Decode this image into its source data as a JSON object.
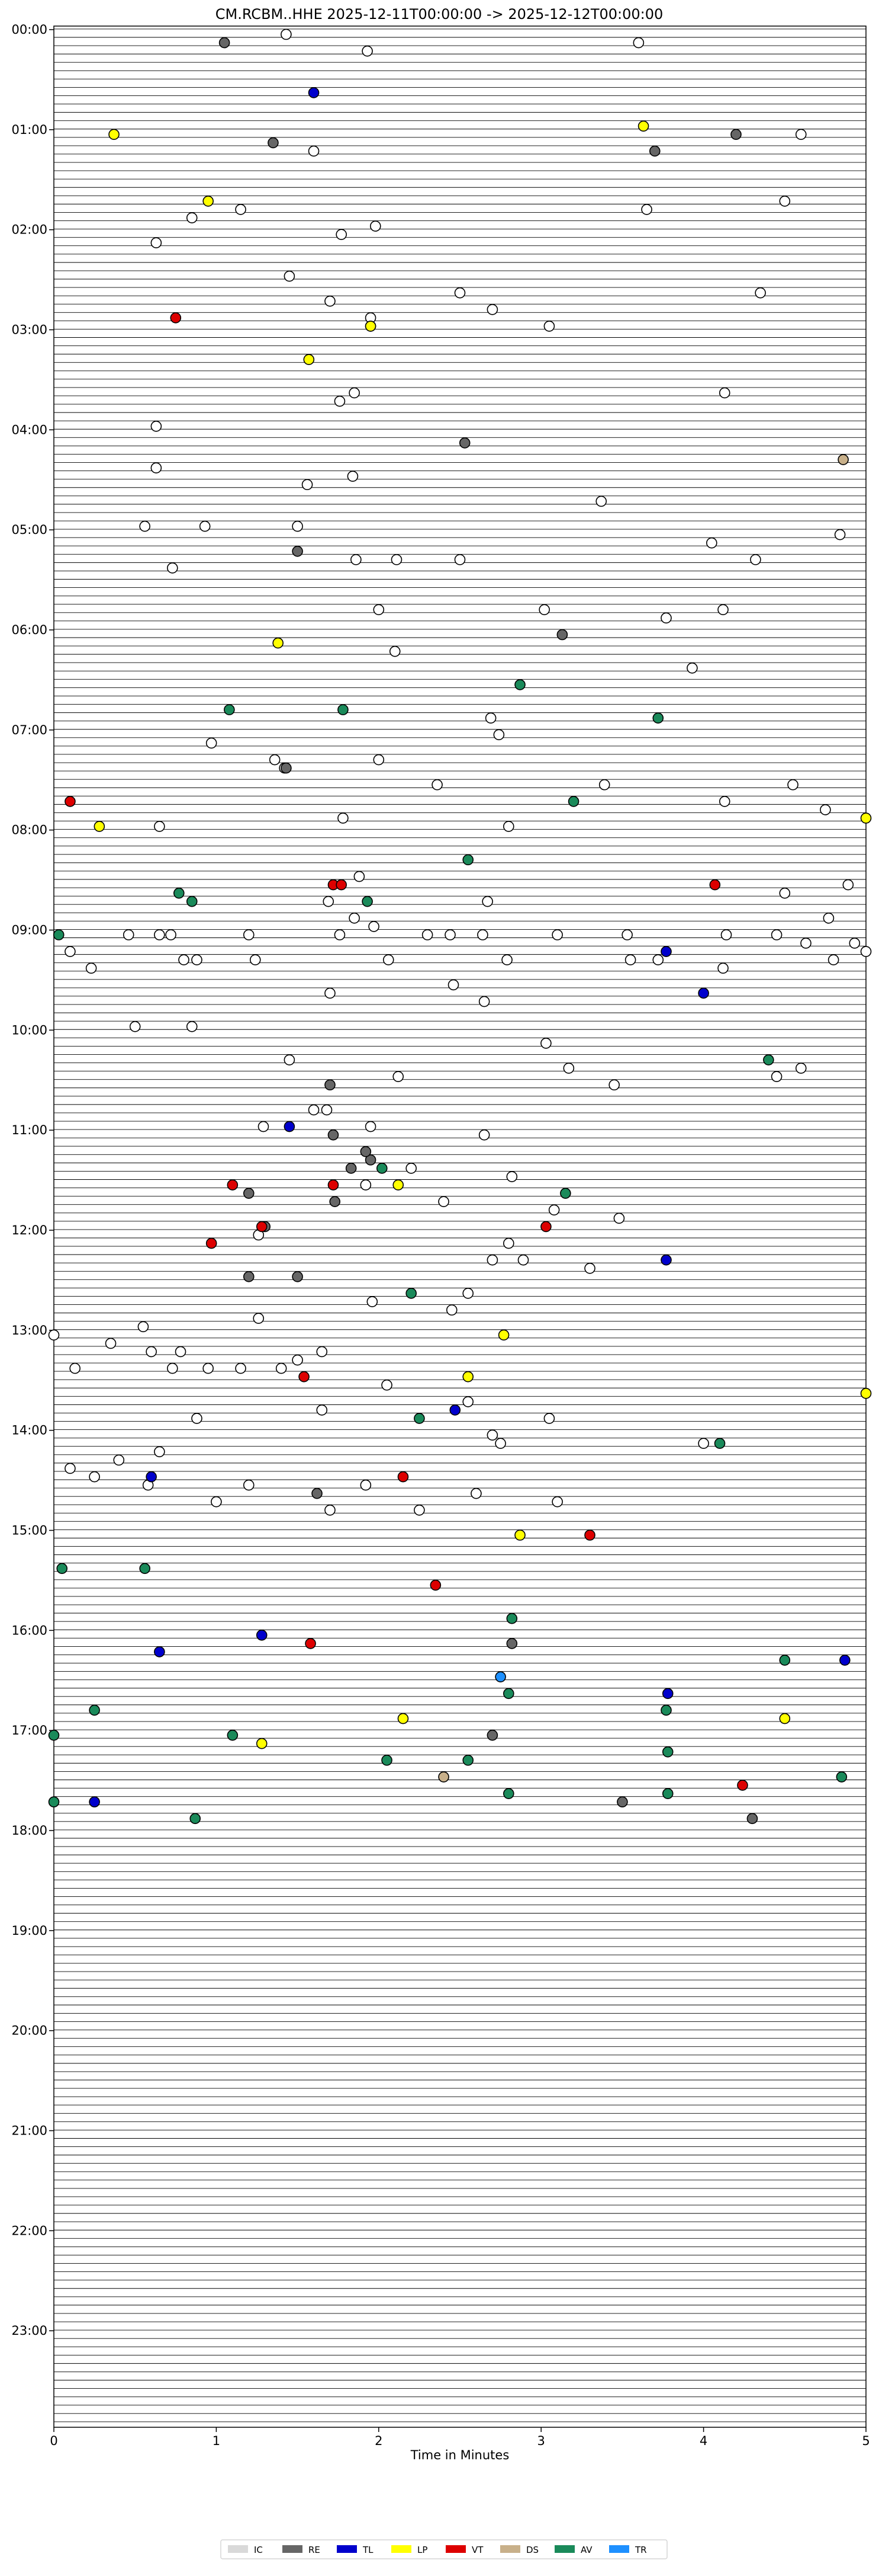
{
  "chart_data": {
    "type": "scatter",
    "title": "CM.RCBM..HHE  2025-12-11T00:00:00 -> 2025-12-12T00:00:00",
    "xlabel": "Time in Minutes",
    "ylabel": "",
    "xlim": [
      0,
      5
    ],
    "ylim": [
      "00:00",
      "24:00"
    ],
    "trace_interval_minutes": 5,
    "grid": false,
    "legend_position": "bottom-center",
    "x_ticks": [
      "0",
      "1",
      "2",
      "3",
      "4",
      "5"
    ],
    "y_ticks": [
      "00:00",
      "01:00",
      "02:00",
      "03:00",
      "04:00",
      "05:00",
      "06:00",
      "07:00",
      "08:00",
      "09:00",
      "10:00",
      "11:00",
      "12:00",
      "13:00",
      "14:00",
      "15:00",
      "16:00",
      "17:00",
      "18:00",
      "19:00",
      "20:00",
      "21:00",
      "22:00",
      "23:00"
    ],
    "legend": [
      {
        "code": "IC",
        "color": "#d9d9d9"
      },
      {
        "code": "RE",
        "color": "#666666"
      },
      {
        "code": "TL",
        "color": "#0000cc"
      },
      {
        "code": "LP",
        "color": "#ffff00"
      },
      {
        "code": "VT",
        "color": "#dd0000"
      },
      {
        "code": "DS",
        "color": "#c8b08a"
      },
      {
        "code": "AV",
        "color": "#1a8a5a"
      },
      {
        "code": "TR",
        "color": "#1e90ff"
      }
    ],
    "series": [
      {
        "class": "IC",
        "color": "#ffffff",
        "points": [
          [
            1.43,
            "00:00"
          ],
          [
            3.6,
            "00:05"
          ],
          [
            1.93,
            "00:10"
          ],
          [
            4.6,
            "01:00"
          ],
          [
            1.6,
            "01:10"
          ],
          [
            4.5,
            "01:40"
          ],
          [
            1.15,
            "01:45"
          ],
          [
            3.65,
            "01:45"
          ],
          [
            0.85,
            "01:50"
          ],
          [
            1.98,
            "01:55"
          ],
          [
            1.77,
            "02:00"
          ],
          [
            0.63,
            "02:05"
          ],
          [
            1.45,
            "02:25"
          ],
          [
            4.35,
            "02:35"
          ],
          [
            2.5,
            "02:35"
          ],
          [
            1.7,
            "02:40"
          ],
          [
            2.7,
            "02:45"
          ],
          [
            1.95,
            "02:50"
          ],
          [
            1.95,
            "02:55"
          ],
          [
            3.05,
            "02:55"
          ],
          [
            1.85,
            "03:35"
          ],
          [
            4.13,
            "03:35"
          ],
          [
            1.76,
            "03:40"
          ],
          [
            0.63,
            "03:55"
          ],
          [
            0.63,
            "04:20"
          ],
          [
            1.84,
            "04:25"
          ],
          [
            1.56,
            "04:30"
          ],
          [
            3.37,
            "04:40"
          ],
          [
            0.56,
            "04:55"
          ],
          [
            0.93,
            "04:55"
          ],
          [
            1.5,
            "04:55"
          ],
          [
            4.84,
            "05:00"
          ],
          [
            4.05,
            "05:05"
          ],
          [
            1.86,
            "05:15"
          ],
          [
            2.11,
            "05:15"
          ],
          [
            2.5,
            "05:15"
          ],
          [
            4.32,
            "05:15"
          ],
          [
            0.73,
            "05:20"
          ],
          [
            2.0,
            "05:45"
          ],
          [
            3.02,
            "05:45"
          ],
          [
            4.12,
            "05:45"
          ],
          [
            3.77,
            "05:50"
          ],
          [
            2.1,
            "06:10"
          ],
          [
            3.93,
            "06:20"
          ],
          [
            2.69,
            "06:50"
          ],
          [
            2.74,
            "07:00"
          ],
          [
            0.97,
            "07:05"
          ],
          [
            1.36,
            "07:15"
          ],
          [
            2.0,
            "07:15"
          ],
          [
            1.42,
            "07:20"
          ],
          [
            2.36,
            "07:30"
          ],
          [
            3.39,
            "07:30"
          ],
          [
            4.55,
            "07:30"
          ],
          [
            4.13,
            "07:40"
          ],
          [
            1.78,
            "07:50"
          ],
          [
            4.75,
            "07:45"
          ],
          [
            0.65,
            "07:55"
          ],
          [
            2.8,
            "07:55"
          ],
          [
            1.88,
            "08:25"
          ],
          [
            4.89,
            "08:30"
          ],
          [
            4.5,
            "08:35"
          ],
          [
            1.69,
            "08:40"
          ],
          [
            2.67,
            "08:40"
          ],
          [
            1.97,
            "08:55"
          ],
          [
            1.85,
            "08:50"
          ],
          [
            4.77,
            "08:50"
          ],
          [
            0.46,
            "09:00"
          ],
          [
            0.65,
            "09:00"
          ],
          [
            0.72,
            "09:00"
          ],
          [
            1.2,
            "09:00"
          ],
          [
            1.76,
            "09:00"
          ],
          [
            2.3,
            "09:00"
          ],
          [
            2.44,
            "09:00"
          ],
          [
            2.64,
            "09:00"
          ],
          [
            3.1,
            "09:00"
          ],
          [
            3.53,
            "09:00"
          ],
          [
            4.14,
            "09:00"
          ],
          [
            4.45,
            "09:00"
          ],
          [
            4.63,
            "09:05"
          ],
          [
            4.93,
            "09:05"
          ],
          [
            0.1,
            "09:10"
          ],
          [
            5.0,
            "09:10"
          ],
          [
            0.23,
            "09:20"
          ],
          [
            0.8,
            "09:15"
          ],
          [
            0.88,
            "09:15"
          ],
          [
            1.24,
            "09:15"
          ],
          [
            2.06,
            "09:15"
          ],
          [
            2.79,
            "09:15"
          ],
          [
            3.55,
            "09:15"
          ],
          [
            3.72,
            "09:15"
          ],
          [
            4.12,
            "09:20"
          ],
          [
            4.8,
            "09:15"
          ],
          [
            2.46,
            "09:30"
          ],
          [
            1.7,
            "09:35"
          ],
          [
            2.65,
            "09:40"
          ],
          [
            0.85,
            "09:55"
          ],
          [
            0.5,
            "09:55"
          ],
          [
            3.03,
            "10:05"
          ],
          [
            3.17,
            "10:20"
          ],
          [
            1.45,
            "10:15"
          ],
          [
            2.12,
            "10:25"
          ],
          [
            3.45,
            "10:30"
          ],
          [
            4.6,
            "10:20"
          ],
          [
            4.45,
            "10:25"
          ],
          [
            1.6,
            "10:45"
          ],
          [
            1.29,
            "10:55"
          ],
          [
            1.95,
            "10:55"
          ],
          [
            1.68,
            "10:45"
          ],
          [
            2.65,
            "11:00"
          ],
          [
            2.2,
            "11:20"
          ],
          [
            2.82,
            "11:25"
          ],
          [
            1.92,
            "11:30"
          ],
          [
            2.4,
            "11:40"
          ],
          [
            3.08,
            "11:45"
          ],
          [
            3.48,
            "11:50"
          ],
          [
            1.26,
            "12:00"
          ],
          [
            2.8,
            "12:05"
          ],
          [
            2.7,
            "12:15"
          ],
          [
            2.89,
            "12:15"
          ],
          [
            3.3,
            "12:20"
          ],
          [
            2.55,
            "12:35"
          ],
          [
            1.96,
            "12:40"
          ],
          [
            2.45,
            "12:45"
          ],
          [
            1.26,
            "12:50"
          ],
          [
            0.55,
            "12:55"
          ],
          [
            0.0,
            "13:00"
          ],
          [
            0.35,
            "13:05"
          ],
          [
            0.78,
            "13:10"
          ],
          [
            0.6,
            "13:10"
          ],
          [
            0.73,
            "13:20"
          ],
          [
            0.13,
            "13:20"
          ],
          [
            0.95,
            "13:20"
          ],
          [
            1.15,
            "13:20"
          ],
          [
            1.4,
            "13:20"
          ],
          [
            1.5,
            "13:15"
          ],
          [
            1.65,
            "13:10"
          ],
          [
            2.05,
            "13:30"
          ],
          [
            2.55,
            "13:40"
          ],
          [
            1.65,
            "13:45"
          ],
          [
            0.88,
            "13:50"
          ],
          [
            3.05,
            "13:50"
          ],
          [
            2.7,
            "14:00"
          ],
          [
            4.0,
            "14:05"
          ],
          [
            2.75,
            "14:05"
          ],
          [
            0.65,
            "14:10"
          ],
          [
            0.1,
            "14:20"
          ],
          [
            0.25,
            "14:25"
          ],
          [
            0.4,
            "14:15"
          ],
          [
            0.58,
            "14:30"
          ],
          [
            1.92,
            "14:30"
          ],
          [
            1.0,
            "14:40"
          ],
          [
            1.2,
            "14:30"
          ],
          [
            2.6,
            "14:35"
          ],
          [
            3.1,
            "14:40"
          ],
          [
            1.7,
            "14:45"
          ],
          [
            2.25,
            "14:45"
          ]
        ]
      },
      {
        "class": "RE",
        "color": "#666666",
        "points": [
          [
            1.05,
            "00:05"
          ],
          [
            4.2,
            "01:00"
          ],
          [
            1.35,
            "01:05"
          ],
          [
            3.7,
            "01:10"
          ],
          [
            2.53,
            "04:05"
          ],
          [
            1.5,
            "05:10"
          ],
          [
            3.13,
            "06:00"
          ],
          [
            1.43,
            "07:20"
          ],
          [
            1.7,
            "10:30"
          ],
          [
            1.72,
            "11:00"
          ],
          [
            1.83,
            "11:20"
          ],
          [
            1.95,
            "11:15"
          ],
          [
            1.92,
            "11:10"
          ],
          [
            1.2,
            "11:35"
          ],
          [
            1.73,
            "11:40"
          ],
          [
            1.3,
            "11:55"
          ],
          [
            1.5,
            "12:25"
          ],
          [
            1.2,
            "12:25"
          ],
          [
            1.62,
            "14:35"
          ],
          [
            2.82,
            "16:05"
          ],
          [
            2.7,
            "17:00"
          ],
          [
            3.5,
            "17:40"
          ],
          [
            4.3,
            "17:50"
          ]
        ]
      },
      {
        "class": "TL",
        "color": "#0000cc",
        "points": [
          [
            1.6,
            "00:35"
          ],
          [
            3.77,
            "09:10"
          ],
          [
            4.0,
            "09:35"
          ],
          [
            1.45,
            "10:55"
          ],
          [
            3.77,
            "12:15"
          ],
          [
            2.47,
            "13:45"
          ],
          [
            0.6,
            "14:25"
          ],
          [
            1.28,
            "16:00"
          ],
          [
            0.65,
            "16:10"
          ],
          [
            4.87,
            "16:15"
          ],
          [
            3.78,
            "16:35"
          ],
          [
            0.25,
            "17:40"
          ]
        ]
      },
      {
        "class": "LP",
        "color": "#ffff00",
        "points": [
          [
            0.37,
            "01:00"
          ],
          [
            3.63,
            "00:55"
          ],
          [
            0.95,
            "01:40"
          ],
          [
            1.95,
            "02:55"
          ],
          [
            1.57,
            "03:15"
          ],
          [
            1.38,
            "06:05"
          ],
          [
            5.0,
            "07:50"
          ],
          [
            0.28,
            "07:55"
          ],
          [
            2.12,
            "11:30"
          ],
          [
            2.77,
            "13:00"
          ],
          [
            2.55,
            "13:25"
          ],
          [
            5.0,
            "13:35"
          ],
          [
            2.87,
            "15:00"
          ],
          [
            2.15,
            "16:50"
          ],
          [
            4.5,
            "16:50"
          ],
          [
            1.28,
            "17:05"
          ]
        ]
      },
      {
        "class": "VT",
        "color": "#dd0000",
        "points": [
          [
            0.75,
            "02:50"
          ],
          [
            0.1,
            "07:40"
          ],
          [
            1.72,
            "08:30"
          ],
          [
            1.77,
            "08:30"
          ],
          [
            4.07,
            "08:30"
          ],
          [
            1.1,
            "11:30"
          ],
          [
            1.72,
            "11:30"
          ],
          [
            1.28,
            "11:55"
          ],
          [
            3.03,
            "11:55"
          ],
          [
            0.97,
            "12:05"
          ],
          [
            1.54,
            "13:25"
          ],
          [
            2.15,
            "14:25"
          ],
          [
            3.3,
            "15:00"
          ],
          [
            2.35,
            "15:30"
          ],
          [
            1.58,
            "16:05"
          ],
          [
            4.24,
            "17:30"
          ]
        ]
      },
      {
        "class": "DS",
        "color": "#c8b08a",
        "points": [
          [
            4.86,
            "04:15"
          ],
          [
            2.4,
            "17:25"
          ]
        ]
      },
      {
        "class": "AV",
        "color": "#1a8a5a",
        "points": [
          [
            2.87,
            "06:30"
          ],
          [
            1.08,
            "06:45"
          ],
          [
            1.78,
            "06:45"
          ],
          [
            3.72,
            "06:50"
          ],
          [
            3.2,
            "07:40"
          ],
          [
            2.55,
            "08:15"
          ],
          [
            0.77,
            "08:35"
          ],
          [
            0.85,
            "08:40"
          ],
          [
            1.93,
            "08:40"
          ],
          [
            0.03,
            "09:00"
          ],
          [
            4.4,
            "10:15"
          ],
          [
            2.02,
            "11:20"
          ],
          [
            3.15,
            "11:35"
          ],
          [
            2.2,
            "12:35"
          ],
          [
            2.25,
            "13:50"
          ],
          [
            4.1,
            "14:05"
          ],
          [
            0.05,
            "15:20"
          ],
          [
            0.56,
            "15:20"
          ],
          [
            2.82,
            "15:50"
          ],
          [
            4.5,
            "16:15"
          ],
          [
            2.8,
            "16:35"
          ],
          [
            0.25,
            "16:45"
          ],
          [
            3.77,
            "16:45"
          ],
          [
            0.0,
            "17:00"
          ],
          [
            1.1,
            "17:00"
          ],
          [
            2.05,
            "17:15"
          ],
          [
            2.55,
            "17:15"
          ],
          [
            3.78,
            "17:10"
          ],
          [
            4.85,
            "17:25"
          ],
          [
            2.8,
            "17:35"
          ],
          [
            3.78,
            "17:35"
          ],
          [
            0.0,
            "17:40"
          ],
          [
            0.87,
            "17:50"
          ]
        ]
      },
      {
        "class": "TR",
        "color": "#1e90ff",
        "points": [
          [
            2.75,
            "16:25"
          ]
        ]
      }
    ]
  }
}
